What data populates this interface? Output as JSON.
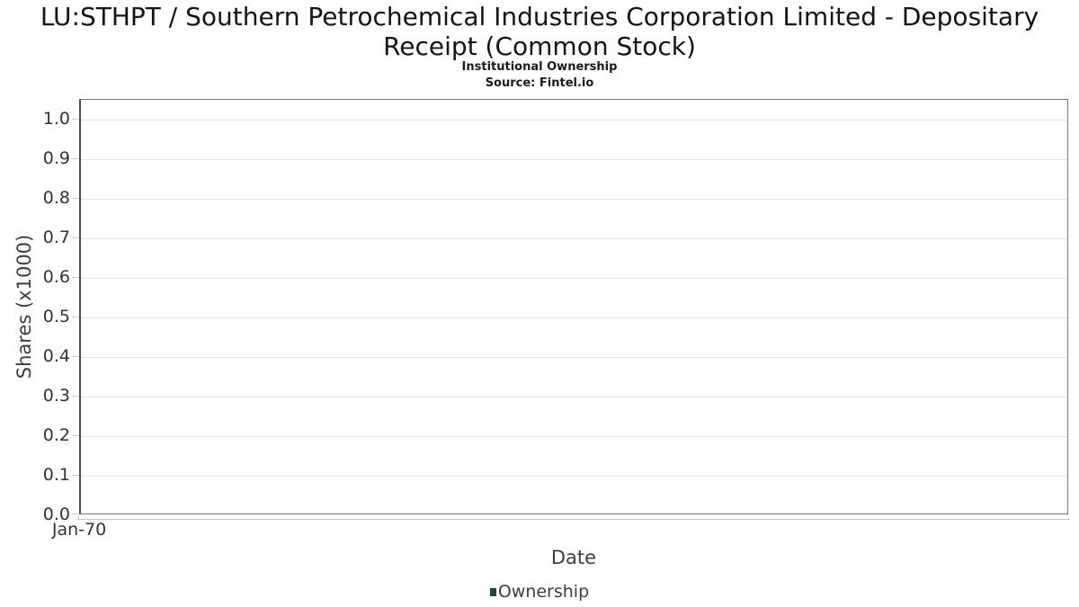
{
  "header": {
    "title": "LU:STHPT / Southern Petrochemical Industries Corporation Limited - Depositary Receipt (Common Stock)",
    "subtitle": "Institutional Ownership",
    "source": "Source: Fintel.io"
  },
  "chart_data": {
    "type": "line",
    "title": "LU:STHPT / Southern Petrochemical Industries Corporation Limited - Depositary Receipt (Common Stock)",
    "subtitle": "Institutional Ownership",
    "source": "Source: Fintel.io",
    "xlabel": "Date",
    "ylabel": "Shares (x1000)",
    "x_tick_labels": [
      "Jan-70"
    ],
    "y_tick_labels": [
      "0.0",
      "0.1",
      "0.2",
      "0.3",
      "0.4",
      "0.5",
      "0.6",
      "0.7",
      "0.8",
      "0.9",
      "1.0"
    ],
    "ylim": [
      0,
      1.05
    ],
    "grid": true,
    "legend_position": "bottom",
    "series": [
      {
        "name": "Ownership",
        "color": "#1d4e2b",
        "x": [],
        "values": []
      }
    ]
  },
  "colors": {
    "grid": "#e2e2e2",
    "plot_border": "#787878",
    "tick": "#c9c9c9",
    "title_text": "#141414",
    "tick_label_text": "#333333",
    "axis_title_text": "#3d3d3d",
    "legend_marker": "#1d4e2b"
  }
}
